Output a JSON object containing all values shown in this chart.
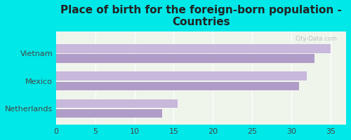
{
  "title": "Place of birth for the foreign-born population -\nCountries",
  "categories": [
    "Netherlands",
    "Mexico",
    "Vietnam"
  ],
  "bar_upper_values": [
    15.5,
    32.0,
    35.0
  ],
  "bar_lower_values": [
    13.5,
    31.0,
    33.0
  ],
  "bar_upper_color": "#c8b8dc",
  "bar_lower_color": "#b09cc8",
  "background_color": "#00e8e8",
  "plot_bg_color": "#f0f5ec",
  "xlim": [
    0,
    37
  ],
  "xticks": [
    0,
    5,
    10,
    15,
    20,
    25,
    30,
    35
  ],
  "title_fontsize": 11,
  "tick_fontsize": 8,
  "label_fontsize": 8,
  "watermark": "City-Data.com",
  "bar_height": 0.32,
  "bar_gap": 0.04
}
